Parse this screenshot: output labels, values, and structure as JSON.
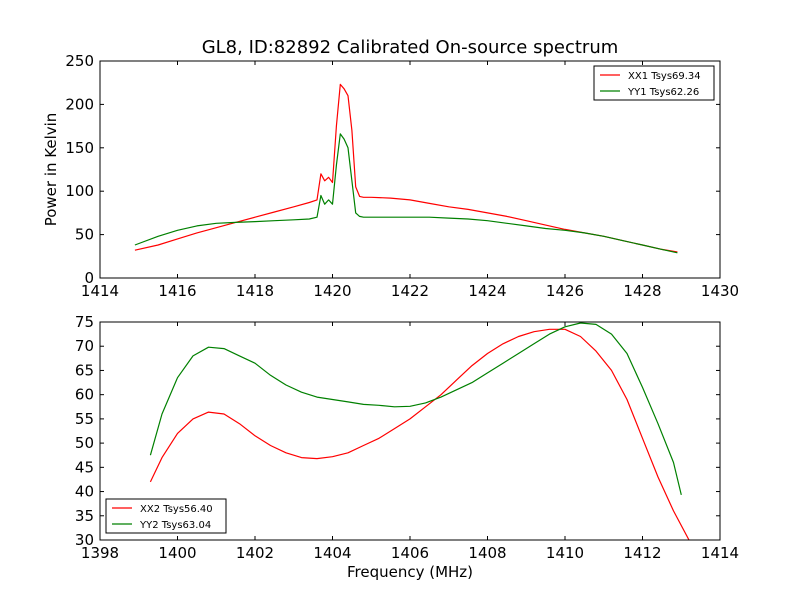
{
  "figure": {
    "title": "GL8, ID:82892 Calibrated On-source spectrum"
  },
  "chart_data": [
    {
      "type": "line",
      "title": "GL8, ID:82892 Calibrated On-source spectrum",
      "xlabel": "",
      "ylabel": "Power in Kelvin",
      "xlim": [
        1414,
        1430
      ],
      "ylim": [
        0,
        250
      ],
      "xticks": [
        1414,
        1416,
        1418,
        1420,
        1422,
        1424,
        1426,
        1428,
        1430
      ],
      "yticks": [
        0,
        50,
        100,
        150,
        200,
        250
      ],
      "grid": false,
      "legend_position": "top-right",
      "series": [
        {
          "name": "XX1 Tsys69.34",
          "color": "#ff0000",
          "x": [
            1414.9,
            1415.5,
            1416.0,
            1416.5,
            1417.0,
            1417.5,
            1418.0,
            1418.5,
            1419.0,
            1419.4,
            1419.6,
            1419.7,
            1419.8,
            1419.9,
            1420.0,
            1420.1,
            1420.2,
            1420.3,
            1420.4,
            1420.5,
            1420.6,
            1420.7,
            1420.8,
            1421.0,
            1421.5,
            1422.0,
            1422.5,
            1423.0,
            1423.5,
            1424.0,
            1424.5,
            1425.0,
            1425.5,
            1426.0,
            1426.5,
            1427.0,
            1427.5,
            1428.0,
            1428.5,
            1428.9
          ],
          "values": [
            32,
            38,
            45,
            52,
            58,
            64,
            70,
            76,
            82,
            87,
            90,
            120,
            112,
            116,
            110,
            175,
            223,
            218,
            210,
            170,
            105,
            94,
            93,
            93,
            92,
            90,
            86,
            82,
            79,
            75,
            71,
            66,
            61,
            56,
            52,
            48,
            43,
            38,
            33,
            30
          ]
        },
        {
          "name": "YY1 Tsys62.26",
          "color": "#008000",
          "x": [
            1414.9,
            1415.5,
            1416.0,
            1416.5,
            1417.0,
            1417.5,
            1418.0,
            1418.5,
            1419.0,
            1419.4,
            1419.6,
            1419.7,
            1419.8,
            1419.9,
            1420.0,
            1420.1,
            1420.2,
            1420.3,
            1420.4,
            1420.5,
            1420.6,
            1420.7,
            1420.8,
            1421.0,
            1421.5,
            1422.0,
            1422.5,
            1423.0,
            1423.5,
            1424.0,
            1424.5,
            1425.0,
            1425.5,
            1426.0,
            1426.5,
            1427.0,
            1427.5,
            1428.0,
            1428.5,
            1428.9
          ],
          "values": [
            38,
            48,
            55,
            60,
            63,
            64,
            65,
            66,
            67,
            68,
            70,
            95,
            85,
            90,
            85,
            130,
            166,
            160,
            150,
            112,
            75,
            71,
            70,
            70,
            70,
            70,
            70,
            69,
            68,
            66,
            63,
            60,
            57,
            55,
            52,
            48,
            43,
            38,
            33,
            29
          ]
        }
      ]
    },
    {
      "type": "line",
      "title": "",
      "xlabel": "Frequency (MHz)",
      "ylabel": "",
      "xlim": [
        1398,
        1414
      ],
      "ylim": [
        30,
        75
      ],
      "xticks": [
        1398,
        1400,
        1402,
        1404,
        1406,
        1408,
        1410,
        1412,
        1414
      ],
      "yticks": [
        30,
        35,
        40,
        45,
        50,
        55,
        60,
        65,
        70,
        75
      ],
      "grid": false,
      "legend_position": "bottom-left",
      "series": [
        {
          "name": "XX2 Tsys56.40",
          "color": "#ff0000",
          "x": [
            1399.3,
            1399.6,
            1400.0,
            1400.4,
            1400.8,
            1401.2,
            1401.6,
            1402.0,
            1402.4,
            1402.8,
            1403.2,
            1403.6,
            1404.0,
            1404.4,
            1404.8,
            1405.2,
            1405.6,
            1406.0,
            1406.4,
            1406.8,
            1407.2,
            1407.6,
            1408.0,
            1408.4,
            1408.8,
            1409.2,
            1409.6,
            1410.0,
            1410.4,
            1410.8,
            1411.2,
            1411.6,
            1412.0,
            1412.4,
            1412.8,
            1413.2
          ],
          "values": [
            42,
            47,
            52,
            55,
            56.4,
            56,
            54,
            51.5,
            49.5,
            48,
            47,
            46.8,
            47.2,
            48,
            49.5,
            51,
            53,
            55,
            57.5,
            60,
            63,
            66,
            68.5,
            70.5,
            72,
            73,
            73.5,
            73.5,
            72,
            69,
            65,
            59,
            51,
            43,
            36,
            30
          ]
        },
        {
          "name": "YY2 Tsys63.04",
          "color": "#008000",
          "x": [
            1399.3,
            1399.6,
            1400.0,
            1400.4,
            1400.8,
            1401.2,
            1401.6,
            1402.0,
            1402.4,
            1402.8,
            1403.2,
            1403.6,
            1404.0,
            1404.4,
            1404.8,
            1405.2,
            1405.6,
            1406.0,
            1406.4,
            1406.8,
            1407.2,
            1407.6,
            1408.0,
            1408.4,
            1408.8,
            1409.2,
            1409.6,
            1410.0,
            1410.4,
            1410.8,
            1411.2,
            1411.6,
            1412.0,
            1412.4,
            1412.8,
            1413.0
          ],
          "values": [
            47.5,
            56,
            63.5,
            68,
            69.8,
            69.5,
            68,
            66.5,
            64,
            62,
            60.5,
            59.5,
            59,
            58.5,
            58,
            57.8,
            57.5,
            57.6,
            58.3,
            59.5,
            61,
            62.5,
            64.5,
            66.5,
            68.5,
            70.5,
            72.5,
            74,
            74.8,
            74.5,
            72.5,
            68.5,
            61.5,
            54,
            46,
            39.3
          ]
        }
      ]
    }
  ]
}
